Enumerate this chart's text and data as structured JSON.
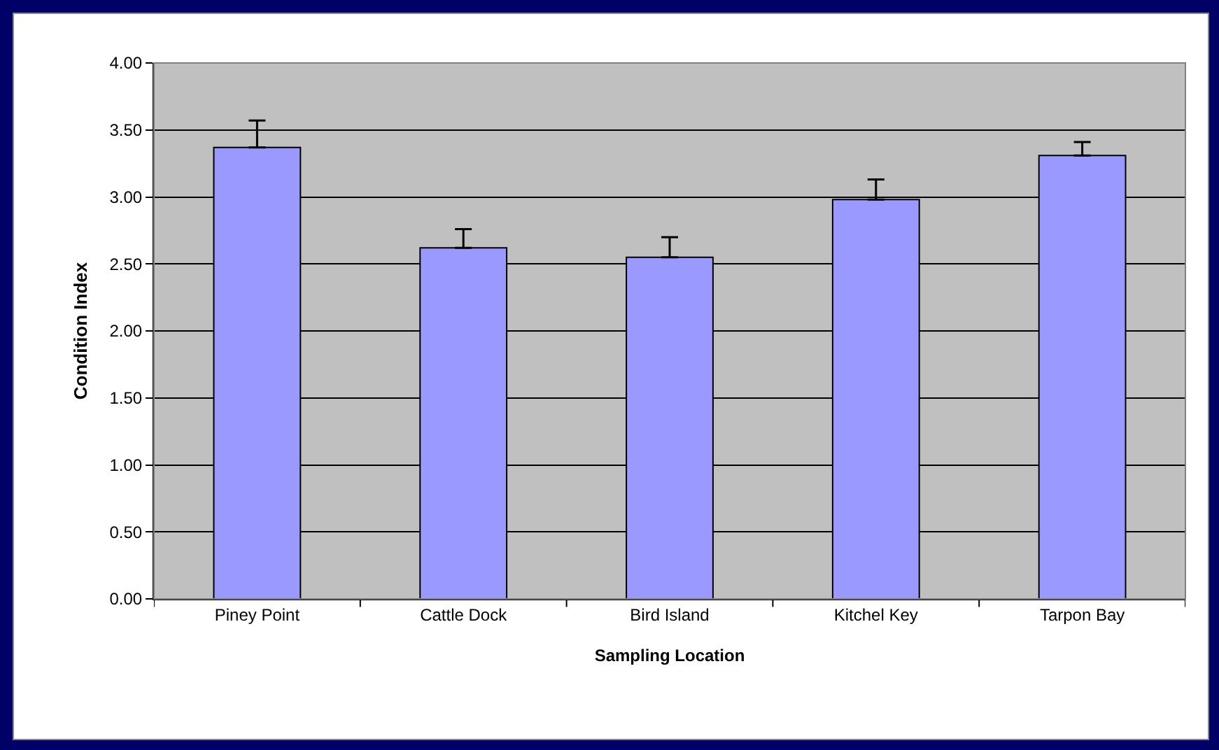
{
  "chart_data": {
    "type": "bar",
    "xlabel": "Sampling Location",
    "ylabel": "Condition Index",
    "categories": [
      "Piney Point",
      "Cattle Dock",
      "Bird Island",
      "Kitchel Key",
      "Tarpon Bay"
    ],
    "values": [
      3.37,
      2.62,
      2.55,
      2.98,
      3.31
    ],
    "errors": [
      0.2,
      0.14,
      0.15,
      0.15,
      0.1
    ],
    "color": "#9999ff",
    "ylim": [
      0,
      4
    ],
    "yticks": [
      {
        "value": 0,
        "label": "0.00"
      },
      {
        "value": 0.5,
        "label": "0.50"
      },
      {
        "value": 1,
        "label": "1.00"
      },
      {
        "value": 1.5,
        "label": "1.50"
      },
      {
        "value": 2,
        "label": "2.00"
      },
      {
        "value": 2.5,
        "label": "2.50"
      },
      {
        "value": 3,
        "label": "3.00"
      },
      {
        "value": 3.5,
        "label": "3.50"
      },
      {
        "value": 4,
        "label": "4.00"
      }
    ],
    "grid": "y"
  }
}
